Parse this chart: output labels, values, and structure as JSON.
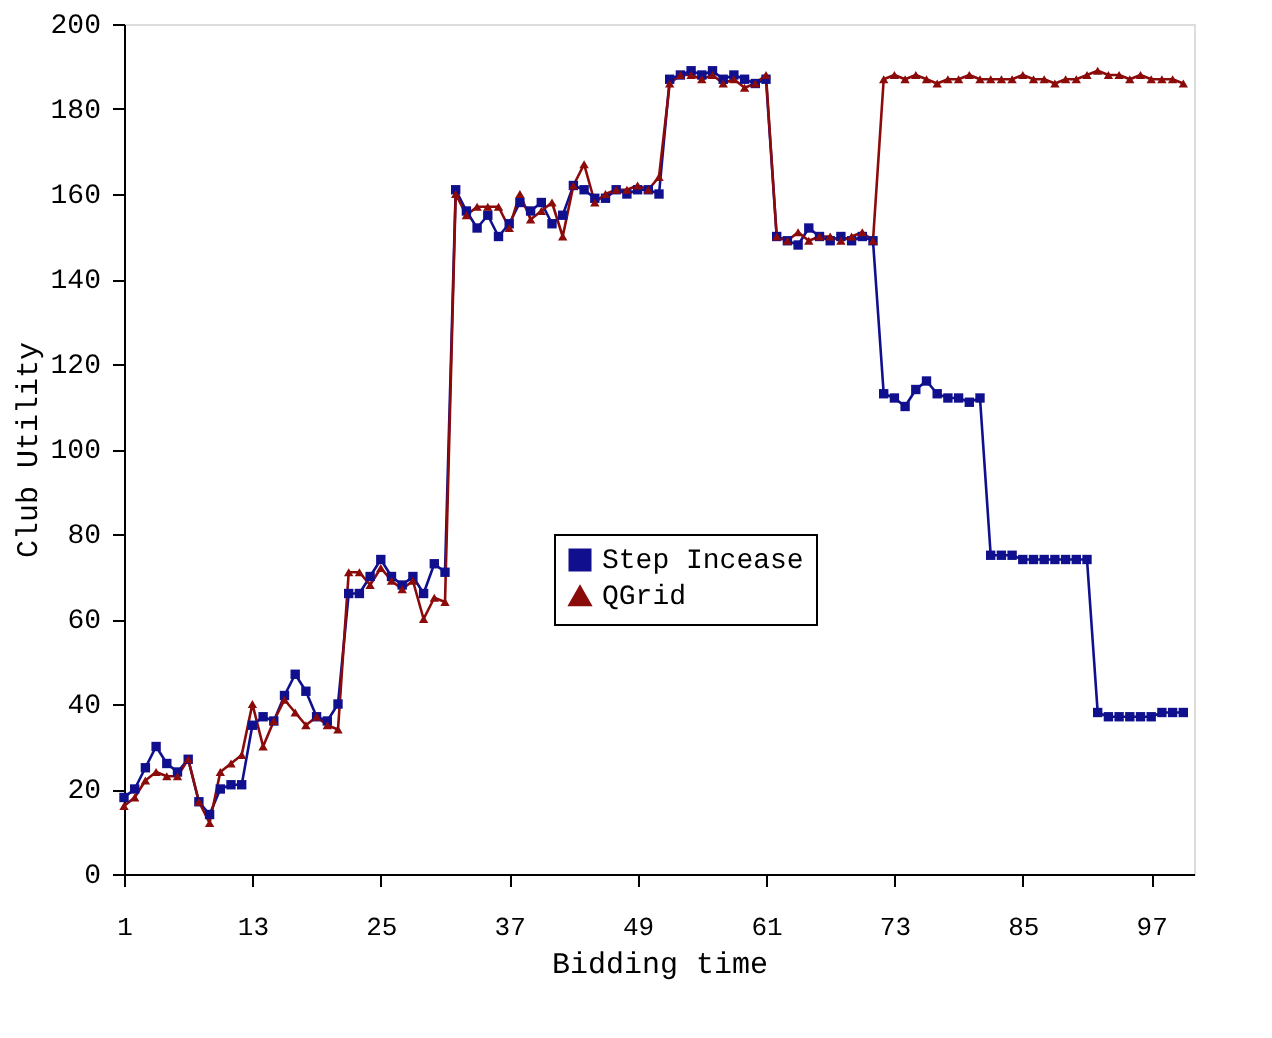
{
  "chart_data": {
    "type": "line",
    "xlabel": "Bidding time",
    "ylabel": "Club Utility",
    "xlim": [
      1,
      101
    ],
    "xticks": [
      1,
      13,
      25,
      37,
      49,
      61,
      73,
      85,
      97
    ],
    "ylim": [
      0,
      200
    ],
    "yticks": [
      0,
      20,
      40,
      60,
      80,
      100,
      120,
      140,
      160,
      180,
      200
    ],
    "grid": false,
    "legend": "center",
    "line_style": "solid",
    "x": [
      1,
      2,
      3,
      4,
      5,
      6,
      7,
      8,
      9,
      10,
      11,
      12,
      13,
      14,
      15,
      16,
      17,
      18,
      19,
      20,
      21,
      22,
      23,
      24,
      25,
      26,
      27,
      28,
      29,
      30,
      31,
      32,
      33,
      34,
      35,
      36,
      37,
      38,
      39,
      40,
      41,
      42,
      43,
      44,
      45,
      46,
      47,
      48,
      49,
      50,
      51,
      52,
      53,
      54,
      55,
      56,
      57,
      58,
      59,
      60,
      61,
      62,
      63,
      64,
      65,
      66,
      67,
      68,
      69,
      70,
      71,
      72,
      73,
      74,
      75,
      76,
      77,
      78,
      79,
      80,
      81,
      82,
      83,
      84,
      85,
      86,
      87,
      88,
      89,
      90,
      91,
      92,
      93,
      94,
      95,
      96,
      97,
      98,
      99,
      100
    ],
    "series": [
      {
        "name": "Step Incease",
        "color": "#10108f",
        "marker": "square",
        "values": [
          18,
          20,
          25,
          30,
          26,
          24,
          27,
          17,
          14,
          20,
          21,
          21,
          35,
          37,
          36,
          42,
          47,
          43,
          37,
          36,
          40,
          66,
          66,
          70,
          74,
          70,
          68,
          70,
          66,
          73,
          71,
          161,
          156,
          152,
          155,
          150,
          153,
          158,
          156,
          158,
          153,
          155,
          162,
          161,
          159,
          159,
          161,
          160,
          161,
          161,
          160,
          187,
          188,
          189,
          188,
          189,
          187,
          188,
          187,
          186,
          187,
          150,
          149,
          148,
          152,
          150,
          149,
          150,
          149,
          150,
          149,
          113,
          112,
          110,
          114,
          116,
          113,
          112,
          112,
          111,
          112,
          75,
          75,
          75,
          74,
          74,
          74,
          74,
          74,
          74,
          74,
          38,
          37,
          37,
          37,
          37,
          37,
          38,
          38,
          38
        ]
      },
      {
        "name": "QGrid",
        "color": "#8b0a0a",
        "marker": "triangle",
        "values": [
          16,
          18,
          22,
          24,
          23,
          23,
          27,
          17,
          12,
          24,
          26,
          28,
          40,
          30,
          36,
          41,
          38,
          35,
          37,
          35,
          34,
          71,
          71,
          68,
          72,
          69,
          67,
          69,
          60,
          65,
          64,
          160,
          155,
          157,
          157,
          157,
          152,
          160,
          154,
          156,
          158,
          150,
          162,
          167,
          158,
          160,
          161,
          161,
          162,
          161,
          164,
          186,
          188,
          188,
          187,
          188,
          186,
          187,
          185,
          186,
          188,
          150,
          149,
          151,
          149,
          150,
          150,
          149,
          150,
          151,
          149,
          187,
          188,
          187,
          188,
          187,
          186,
          187,
          187,
          188,
          187,
          187,
          187,
          187,
          188,
          187,
          187,
          186,
          187,
          187,
          188,
          189,
          188,
          188,
          187,
          188,
          187,
          187,
          187,
          186
        ]
      }
    ]
  }
}
